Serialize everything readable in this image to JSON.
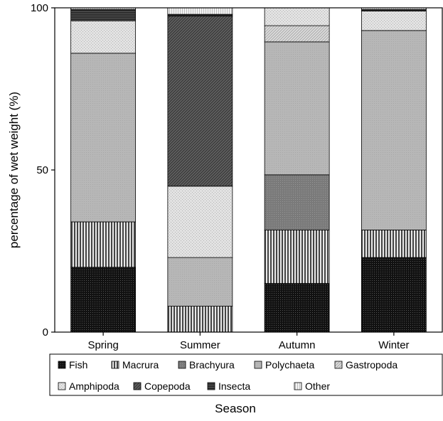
{
  "chart_data": {
    "type": "bar",
    "stacked": true,
    "title": "",
    "xlabel": "Season",
    "ylabel": "percentage of wet weight (%)",
    "ylim": [
      0,
      100
    ],
    "yticks": [
      "0",
      "50",
      "100"
    ],
    "categories": [
      "Spring",
      "Summer",
      "Autumn",
      "Winter"
    ],
    "legend_position": "bottom",
    "series": [
      {
        "name": "Fish",
        "values": [
          20,
          0,
          15,
          23
        ],
        "pattern": "fish"
      },
      {
        "name": "Macrura",
        "values": [
          14,
          8,
          16.5,
          8.5
        ],
        "pattern": "vlines"
      },
      {
        "name": "Brachyura",
        "values": [
          0,
          0,
          17,
          0
        ],
        "pattern": "brachyura"
      },
      {
        "name": "Polychaeta",
        "values": [
          52,
          15,
          41,
          61.5
        ],
        "pattern": "poly"
      },
      {
        "name": "Gastropoda",
        "values": [
          0,
          0,
          5,
          0
        ],
        "pattern": "gastro"
      },
      {
        "name": "Amphipoda",
        "values": [
          10,
          22,
          5.5,
          6
        ],
        "pattern": "amphi"
      },
      {
        "name": "Copepoda",
        "values": [
          0,
          52.5,
          0,
          0
        ],
        "pattern": "cope"
      },
      {
        "name": "Insecta",
        "values": [
          3.5,
          0.5,
          0,
          0.5
        ],
        "pattern": "insecta"
      },
      {
        "name": "Other",
        "values": [
          0.5,
          2,
          0,
          0.5
        ],
        "pattern": "other"
      }
    ]
  }
}
